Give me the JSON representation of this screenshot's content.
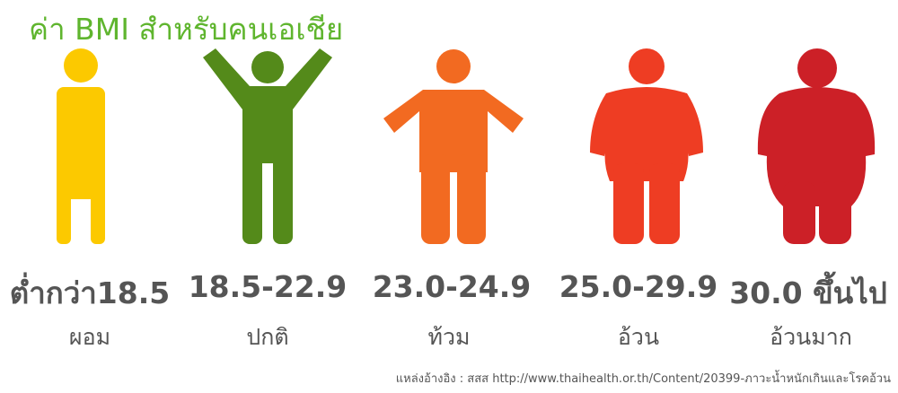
{
  "title": "ค่า BMI สำหรับคนเอเชีย",
  "categories": [
    {
      "range": "ต่ำกว่า18.5",
      "label": "ผอม",
      "color": "#fcc900",
      "icon": "thin-person-icon"
    },
    {
      "range": "18.5-22.9",
      "label": "ปกติ",
      "color": "#548a1a",
      "icon": "normal-person-arms-up-icon"
    },
    {
      "range": "23.0-24.9",
      "label": "ท้วม",
      "color": "#f26a21",
      "icon": "chubby-person-icon"
    },
    {
      "range": "25.0-29.9",
      "label": "อ้วน",
      "color": "#ee3d23",
      "icon": "fat-person-icon"
    },
    {
      "range": "30.0 ขึ้นไป",
      "label": "อ้วนมาก",
      "color": "#cc2027",
      "icon": "obese-person-icon"
    }
  ],
  "source": "แหล่งอ้างอิง : สสส http://www.thaihealth.or.th/Content/20399-ภาวะน้ำหนักเกินและโรคอ้วน"
}
